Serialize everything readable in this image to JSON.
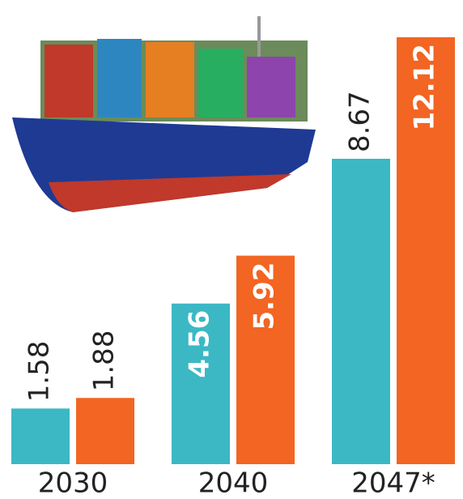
{
  "chart_data": {
    "type": "bar",
    "categories": [
      "2030",
      "2040",
      "2047*"
    ],
    "series": [
      {
        "color": "#3bb8c4",
        "values": [
          1.58,
          4.56,
          8.67
        ]
      },
      {
        "color": "#f26522",
        "values": [
          1.88,
          5.92,
          12.12
        ]
      }
    ]
  }
}
